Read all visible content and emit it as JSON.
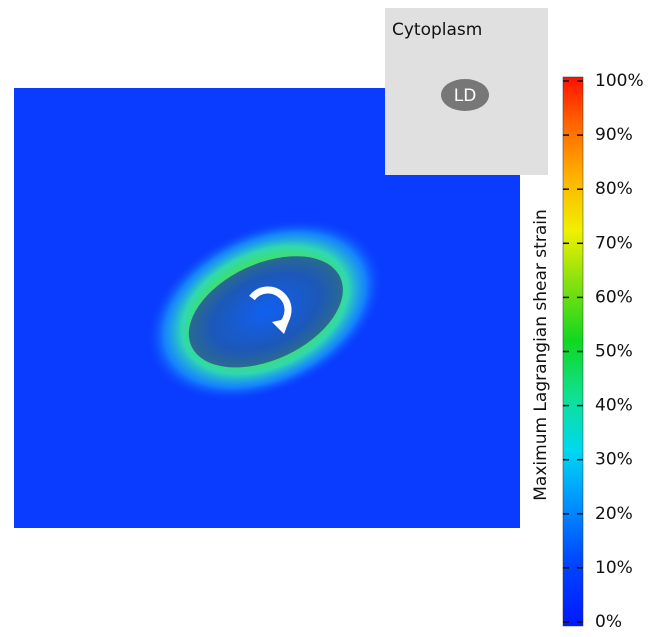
{
  "chart_data": {
    "type": "colormap",
    "inset_label": "Cytoplasm",
    "droplet_label": "LD",
    "colorbar": {
      "label": "Maximum Lagrangian shear strain",
      "lim": [
        0,
        100
      ],
      "ticks": [
        {
          "value": 0,
          "label": "0%"
        },
        {
          "value": 10,
          "label": "10%"
        },
        {
          "value": 20,
          "label": "20%"
        },
        {
          "value": 30,
          "label": "30%"
        },
        {
          "value": 40,
          "label": "40%"
        },
        {
          "value": 50,
          "label": "50%"
        },
        {
          "value": 60,
          "label": "60%"
        },
        {
          "value": 70,
          "label": "70%"
        },
        {
          "value": 80,
          "label": "80%"
        },
        {
          "value": 90,
          "label": "90%"
        },
        {
          "value": 100,
          "label": "100%"
        }
      ]
    }
  }
}
